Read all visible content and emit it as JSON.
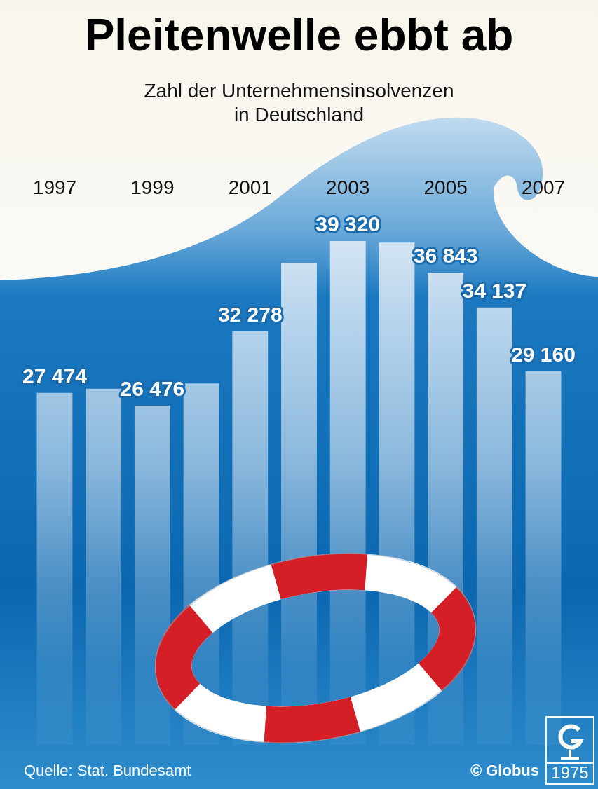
{
  "chart_data": {
    "type": "bar",
    "title": "Pleitenwelle ebbt ab",
    "subtitle": "Zahl der Unternehmensinsolvenzen in Deutschland",
    "categories": [
      "1997",
      null,
      "1999",
      null,
      "2001",
      null,
      "2003",
      null,
      "2005",
      null,
      "2007"
    ],
    "values": [
      27474,
      27800,
      26476,
      28200,
      32278,
      37600,
      39320,
      39200,
      36843,
      34137,
      29160
    ],
    "value_labels": [
      "27 474",
      null,
      "26 476",
      null,
      "32 278",
      null,
      "39 320",
      null,
      "36 843",
      "34 137",
      "29 160"
    ],
    "color": "#dce9f5",
    "ylim": [
      0,
      40000
    ],
    "data_labels": true,
    "tick_labels": "x",
    "grid": false,
    "source": "Quelle: Stat. Bundesamt",
    "annotations": [
      "© Globus",
      "1975"
    ]
  }
}
